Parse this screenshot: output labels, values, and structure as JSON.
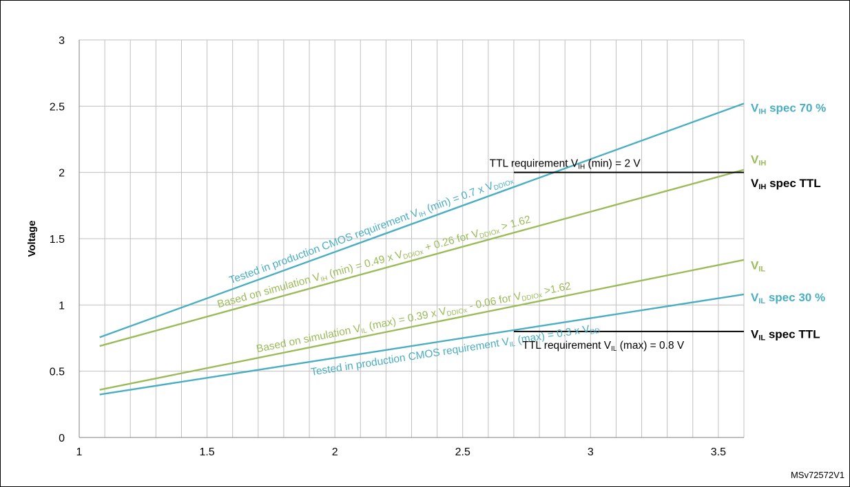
{
  "colors": {
    "cmos": "#4aaec2",
    "sim": "#9bbb59",
    "ttl": "#000000",
    "grid": "#bfbfbf"
  },
  "reference": "MSv72572V1",
  "chart_data": {
    "type": "line",
    "ylabel": "Voltage",
    "xlabel": "",
    "xlim": [
      1,
      3.6
    ],
    "ylim": [
      0,
      3
    ],
    "x_minor_step": 0.1,
    "y_minor_step": 0.5,
    "xticks": [
      {
        "value": 1,
        "label": "1"
      },
      {
        "value": 1.5,
        "label": "1.5"
      },
      {
        "value": 2,
        "label": "2"
      },
      {
        "value": 2.5,
        "label": "2.5"
      },
      {
        "value": 3,
        "label": "3"
      },
      {
        "value": 3.5,
        "label": "3.5"
      }
    ],
    "yticks": [
      {
        "value": 0,
        "label": "0"
      },
      {
        "value": 0.5,
        "label": "0.5"
      },
      {
        "value": 1,
        "label": "1"
      },
      {
        "value": 1.5,
        "label": "1.5"
      },
      {
        "value": 2,
        "label": "2"
      },
      {
        "value": 2.5,
        "label": "2.5"
      },
      {
        "value": 3,
        "label": "3"
      }
    ],
    "grid": true,
    "series": [
      {
        "id": "vih70",
        "label": {
          "main": "V",
          "sub": "IH",
          "tail": " spec 70 %"
        },
        "colorKey": "cmos",
        "x": [
          1.08,
          3.6
        ],
        "y": [
          0.756,
          2.52
        ],
        "annotation": {
          "parts": [
            {
              "t": "Tested in production CMOS requirement V"
            },
            {
              "t": "IH",
              "sub": true
            },
            {
              "t": " (min) = 0.7 x V"
            },
            {
              "t": "DDIOx",
              "sub": true
            }
          ]
        }
      },
      {
        "id": "vih",
        "label": {
          "main": "V",
          "sub": "IH",
          "tail": ""
        },
        "colorKey": "sim",
        "x": [
          1.08,
          3.6
        ],
        "y": [
          0.69,
          2.02
        ],
        "annotation": {
          "parts": [
            {
              "t": "Based on simulation V"
            },
            {
              "t": "IH",
              "sub": true
            },
            {
              "t": " (min) = 0.49 x V"
            },
            {
              "t": "DDIOx",
              "sub": true
            },
            {
              "t": " + 0.26 for V"
            },
            {
              "t": "DDIOx",
              "sub": true
            },
            {
              "t": " > 1.62"
            }
          ]
        }
      },
      {
        "id": "vil",
        "label": {
          "main": "V",
          "sub": "IL",
          "tail": ""
        },
        "colorKey": "sim",
        "x": [
          1.08,
          3.6
        ],
        "y": [
          0.36,
          1.34
        ],
        "annotation": {
          "parts": [
            {
              "t": "Based on simulation V"
            },
            {
              "t": "IL",
              "sub": true
            },
            {
              "t": " (max) = 0.39 x V"
            },
            {
              "t": "DDIOx",
              "sub": true
            },
            {
              "t": " - 0.06 for V"
            },
            {
              "t": "DDIOx",
              "sub": true
            },
            {
              "t": " >1.62"
            }
          ]
        }
      },
      {
        "id": "vil30",
        "label": {
          "main": "V",
          "sub": "IL",
          "tail": " spec 30 %"
        },
        "colorKey": "cmos",
        "x": [
          1.08,
          3.6
        ],
        "y": [
          0.324,
          1.08
        ],
        "annotation": {
          "parts": [
            {
              "t": "Tested in production CMOS requirement V"
            },
            {
              "t": "IL",
              "sub": true
            },
            {
              "t": " (max) = 0.3 x V"
            },
            {
              "t": "DD",
              "sub": true
            }
          ]
        }
      },
      {
        "id": "vihttl",
        "label": {
          "main": "V",
          "sub": "IH",
          "tail": " spec TTL"
        },
        "colorKey": "ttl",
        "x": [
          2.7,
          3.6
        ],
        "y": [
          2,
          2
        ],
        "annotation": {
          "parts": [
            {
              "t": "TTL requirement V"
            },
            {
              "t": "IH",
              "sub": true
            },
            {
              "t": " (min) = 2 V"
            }
          ]
        }
      },
      {
        "id": "vilttl",
        "label": {
          "main": "V",
          "sub": "IL",
          "tail": " spec TTL"
        },
        "colorKey": "ttl",
        "x": [
          2.7,
          3.6
        ],
        "y": [
          0.8,
          0.8
        ],
        "annotation": {
          "parts": [
            {
              "t": "TTL requirement V"
            },
            {
              "t": "IL",
              "sub": true
            },
            {
              "t": " (max) = 0.8 V"
            }
          ]
        }
      }
    ]
  }
}
